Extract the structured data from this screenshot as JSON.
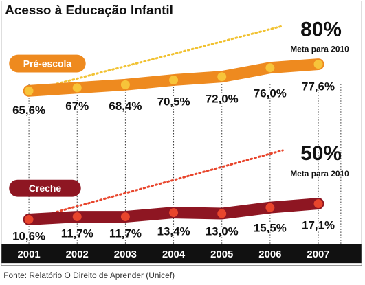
{
  "chart_data": {
    "type": "line",
    "title": "Acesso à Educação Infantil",
    "source": "Fonte: Relatório O Direito de Aprender (Unicef)",
    "categories": [
      "2001",
      "2002",
      "2003",
      "2004",
      "2005",
      "2006",
      "2007"
    ],
    "series": [
      {
        "name": "Pré-escola",
        "values": [
          65.6,
          67,
          68.4,
          70.5,
          72.0,
          76.0,
          77.6
        ],
        "labels": [
          "65,6%",
          "67%",
          "68,4%",
          "70,5%",
          "72,0%",
          "76,0%",
          "77,6%"
        ],
        "color": "#ee8a1f",
        "point_color": "#f7c43a",
        "target": {
          "value": 80,
          "label": "80%",
          "caption": "Meta para 2010"
        }
      },
      {
        "name": "Creche",
        "values": [
          10.6,
          11.7,
          11.7,
          13.4,
          13.0,
          15.5,
          17.1
        ],
        "labels": [
          "10,6%",
          "11,7%",
          "11,7%",
          "13,4%",
          "13,0%",
          "15,5%",
          "17,1%"
        ],
        "color": "#8e1622",
        "point_color": "#e8452c",
        "target": {
          "value": 50,
          "label": "50%",
          "caption": "Meta para 2010"
        }
      }
    ],
    "grid": true,
    "colors": {
      "axis_bar": "#111111",
      "axis_text": "#ffffff",
      "target_line_1": "#f1c232",
      "target_line_2": "#e8452c"
    }
  }
}
